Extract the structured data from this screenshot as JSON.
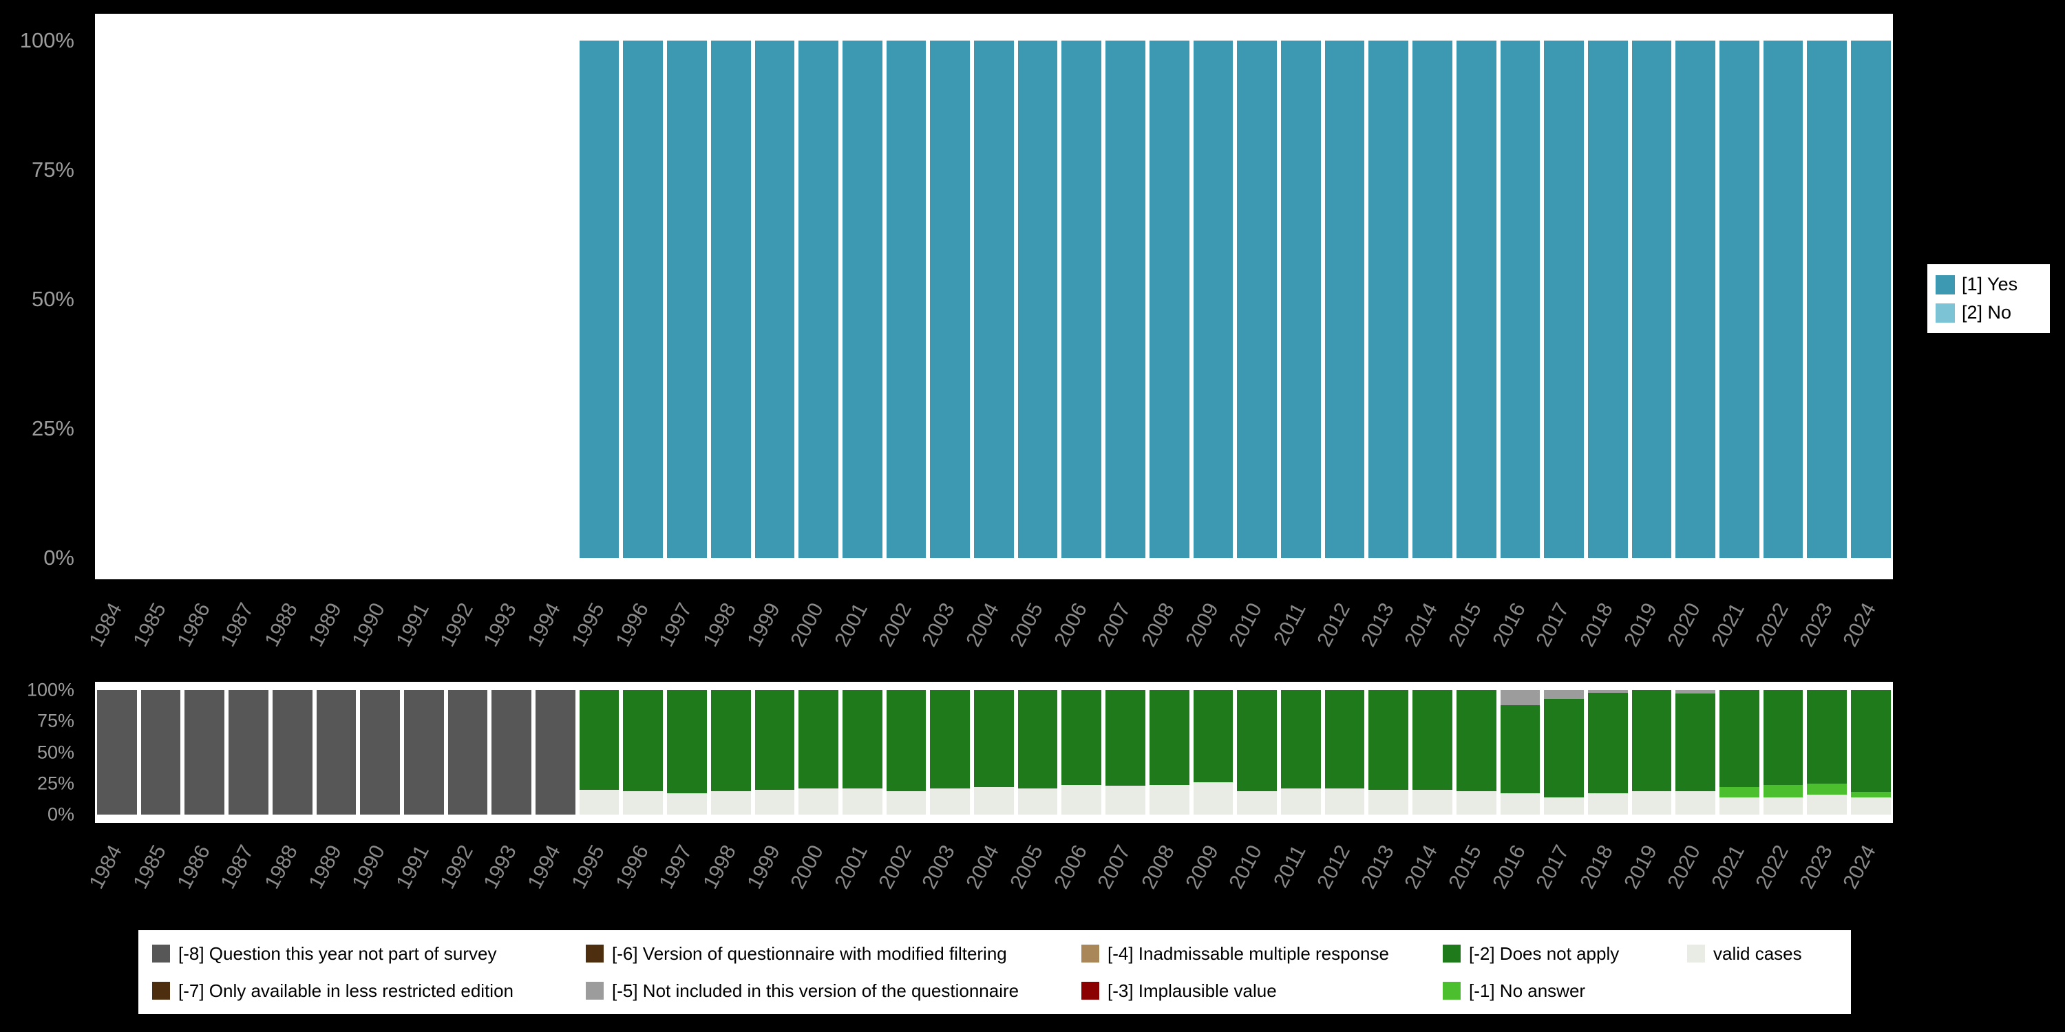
{
  "background": "#000000",
  "panel_color": "#ffffff",
  "axis_text_color": "#8a8a8a",
  "chart_data": [
    {
      "type": "bar",
      "stacked": true,
      "title": "",
      "xlabel": "",
      "ylabel": "",
      "ylim": [
        0,
        100
      ],
      "grid": false,
      "legend_position": "right",
      "ytick_labels": [
        "100%",
        "75%",
        "50%",
        "25%",
        "0%"
      ],
      "categories": [
        "1984",
        "1985",
        "1986",
        "1987",
        "1988",
        "1989",
        "1990",
        "1991",
        "1992",
        "1993",
        "1994",
        "1995",
        "1996",
        "1997",
        "1998",
        "1999",
        "2000",
        "2001",
        "2002",
        "2003",
        "2004",
        "2005",
        "2006",
        "2007",
        "2008",
        "2009",
        "2010",
        "2011",
        "2012",
        "2013",
        "2014",
        "2015",
        "2016",
        "2017",
        "2018",
        "2019",
        "2020",
        "2021",
        "2022",
        "2023",
        "2024"
      ],
      "legend": [
        {
          "label": "[1] Yes",
          "color": "#3d98b2"
        },
        {
          "label": "[2] No",
          "color": "#7cc3d6"
        }
      ],
      "series": [
        {
          "name": "[1] Yes",
          "color": "#3d98b2",
          "values": [
            0,
            0,
            0,
            0,
            0,
            0,
            0,
            0,
            0,
            0,
            0,
            100,
            100,
            100,
            100,
            100,
            100,
            100,
            100,
            100,
            100,
            100,
            100,
            100,
            100,
            100,
            100,
            100,
            100,
            100,
            100,
            100,
            100,
            100,
            100,
            100,
            100,
            100,
            100,
            100,
            100
          ]
        }
      ]
    },
    {
      "type": "bar",
      "stacked": true,
      "title": "",
      "xlabel": "",
      "ylabel": "",
      "ylim": [
        0,
        100
      ],
      "grid": false,
      "legend_position": "bottom",
      "ytick_labels": [
        "100%",
        "75%",
        "50%",
        "25%",
        "0%"
      ],
      "categories": [
        "1984",
        "1985",
        "1986",
        "1987",
        "1988",
        "1989",
        "1990",
        "1991",
        "1992",
        "1993",
        "1994",
        "1995",
        "1996",
        "1997",
        "1998",
        "1999",
        "2000",
        "2001",
        "2002",
        "2003",
        "2004",
        "2005",
        "2006",
        "2007",
        "2008",
        "2009",
        "2010",
        "2011",
        "2012",
        "2013",
        "2014",
        "2015",
        "2016",
        "2017",
        "2018",
        "2019",
        "2020",
        "2021",
        "2022",
        "2023",
        "2024"
      ],
      "series": [
        {
          "name": "valid cases",
          "color": "#e8ece5",
          "values": [
            0,
            0,
            0,
            0,
            0,
            0,
            0,
            0,
            0,
            0,
            0,
            20,
            19,
            17,
            19,
            20,
            21,
            21,
            19,
            21,
            22,
            21,
            24,
            23,
            24,
            26,
            19,
            21,
            21,
            20,
            20,
            19,
            17,
            14,
            17,
            19,
            19,
            14,
            14,
            16,
            14
          ]
        },
        {
          "name": "[-1] No answer",
          "color": "#4cbf2f",
          "values": [
            0,
            0,
            0,
            0,
            0,
            0,
            0,
            0,
            0,
            0,
            0,
            0,
            0,
            0,
            0,
            0,
            0,
            0,
            0,
            0,
            0,
            0,
            0,
            0,
            0,
            0,
            0,
            0,
            0,
            0,
            0,
            0,
            0,
            0,
            0,
            0,
            0,
            8,
            10,
            9,
            4
          ]
        },
        {
          "name": "[-2] Does not apply",
          "color": "#1e7a1b",
          "values": [
            0,
            0,
            0,
            0,
            0,
            0,
            0,
            0,
            0,
            0,
            0,
            80,
            81,
            83,
            81,
            80,
            79,
            79,
            81,
            79,
            78,
            79,
            76,
            77,
            76,
            74,
            81,
            79,
            79,
            80,
            80,
            81,
            71,
            79,
            81,
            81,
            78,
            78,
            76,
            75,
            82
          ]
        },
        {
          "name": "[-5] Not included in this version of the questionnaire",
          "color": "#9c9c9c",
          "values": [
            0,
            0,
            0,
            0,
            0,
            0,
            0,
            0,
            0,
            0,
            0,
            0,
            0,
            0,
            0,
            0,
            0,
            0,
            0,
            0,
            0,
            0,
            0,
            0,
            0,
            0,
            0,
            0,
            0,
            0,
            0,
            0,
            12,
            7,
            2,
            0,
            3,
            0,
            0,
            0,
            0
          ]
        },
        {
          "name": "[-8] Question this year not part of survey",
          "color": "#575757",
          "values": [
            100,
            100,
            100,
            100,
            100,
            100,
            100,
            100,
            100,
            100,
            100,
            0,
            0,
            0,
            0,
            0,
            0,
            0,
            0,
            0,
            0,
            0,
            0,
            0,
            0,
            0,
            0,
            0,
            0,
            0,
            0,
            0,
            0,
            0,
            0,
            0,
            0,
            0,
            0,
            0,
            0
          ]
        }
      ]
    }
  ],
  "missing_legend": {
    "columns": [
      [
        {
          "label": "[-8] Question this year not part of survey",
          "color": "#575757"
        },
        {
          "label": "[-7] Only available in less restricted edition",
          "color": "#4d2e0f"
        }
      ],
      [
        {
          "label": "[-6] Version of questionnaire with modified filtering",
          "color": "#4d2e0f"
        },
        {
          "label": "[-5] Not included in this version of the questionnaire",
          "color": "#9c9c9c"
        }
      ],
      [
        {
          "label": "[-4] Inadmissable multiple response",
          "color": "#aa8758"
        },
        {
          "label": "[-3] Implausible value",
          "color": "#8b0000"
        }
      ],
      [
        {
          "label": "[-2] Does not apply",
          "color": "#1e7a1b"
        },
        {
          "label": "[-1] No answer",
          "color": "#4cbf2f"
        }
      ],
      [
        {
          "label": "valid cases",
          "color": "#e8ece5"
        }
      ]
    ]
  }
}
